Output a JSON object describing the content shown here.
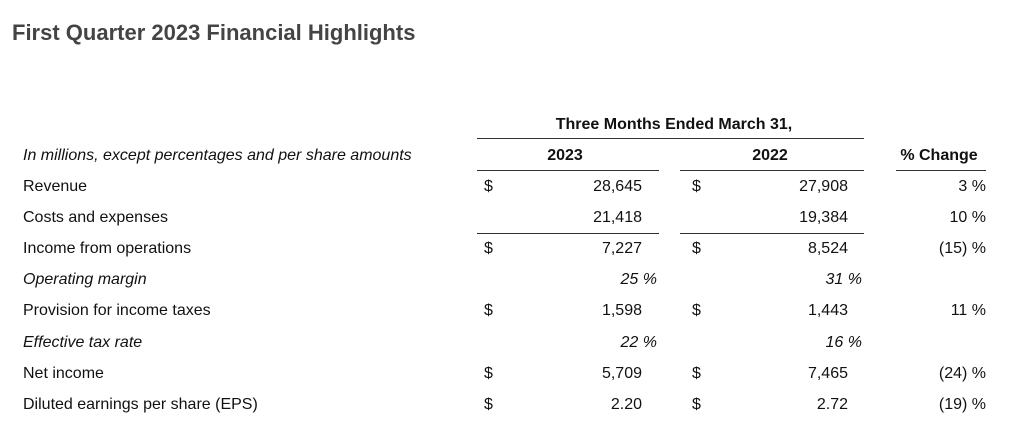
{
  "header": {
    "title": "First Quarter 2023 Financial Highlights"
  },
  "table": {
    "period": "Three Months Ended March 31,",
    "caption": "In millions, except percentages and per share amounts",
    "columns": [
      "2023",
      "2022",
      "% Change"
    ],
    "rows": [
      {
        "label": "Revenue",
        "cur1": "$",
        "v1": "28,645",
        "cur2": "$",
        "v2": "27,908",
        "change": "3 %"
      },
      {
        "label": "Costs and expenses",
        "v1": "21,418",
        "v2": "19,384",
        "change": "10 %",
        "rule_below": true
      },
      {
        "label": "Income from operations",
        "cur1": "$",
        "v1": "7,227",
        "cur2": "$",
        "v2": "8,524",
        "change": "(15) %"
      },
      {
        "label": "Operating margin",
        "italic": true,
        "v1": "25 %",
        "v2": "31 %"
      },
      {
        "label": "Provision for income taxes",
        "cur1": "$",
        "v1": "1,598",
        "cur2": "$",
        "v2": "1,443",
        "change": "11 %"
      },
      {
        "label": "Effective tax rate",
        "italic": true,
        "v1": "22 %",
        "v2": "16 %"
      },
      {
        "label": "Net income",
        "cur1": "$",
        "v1": "5,709",
        "cur2": "$",
        "v2": "7,465",
        "change": "(24) %"
      },
      {
        "label": "Diluted earnings per share (EPS)",
        "cur1": "$",
        "v1": "2.20",
        "cur2": "$",
        "v2": "2.72",
        "change": "(19) %"
      }
    ]
  }
}
